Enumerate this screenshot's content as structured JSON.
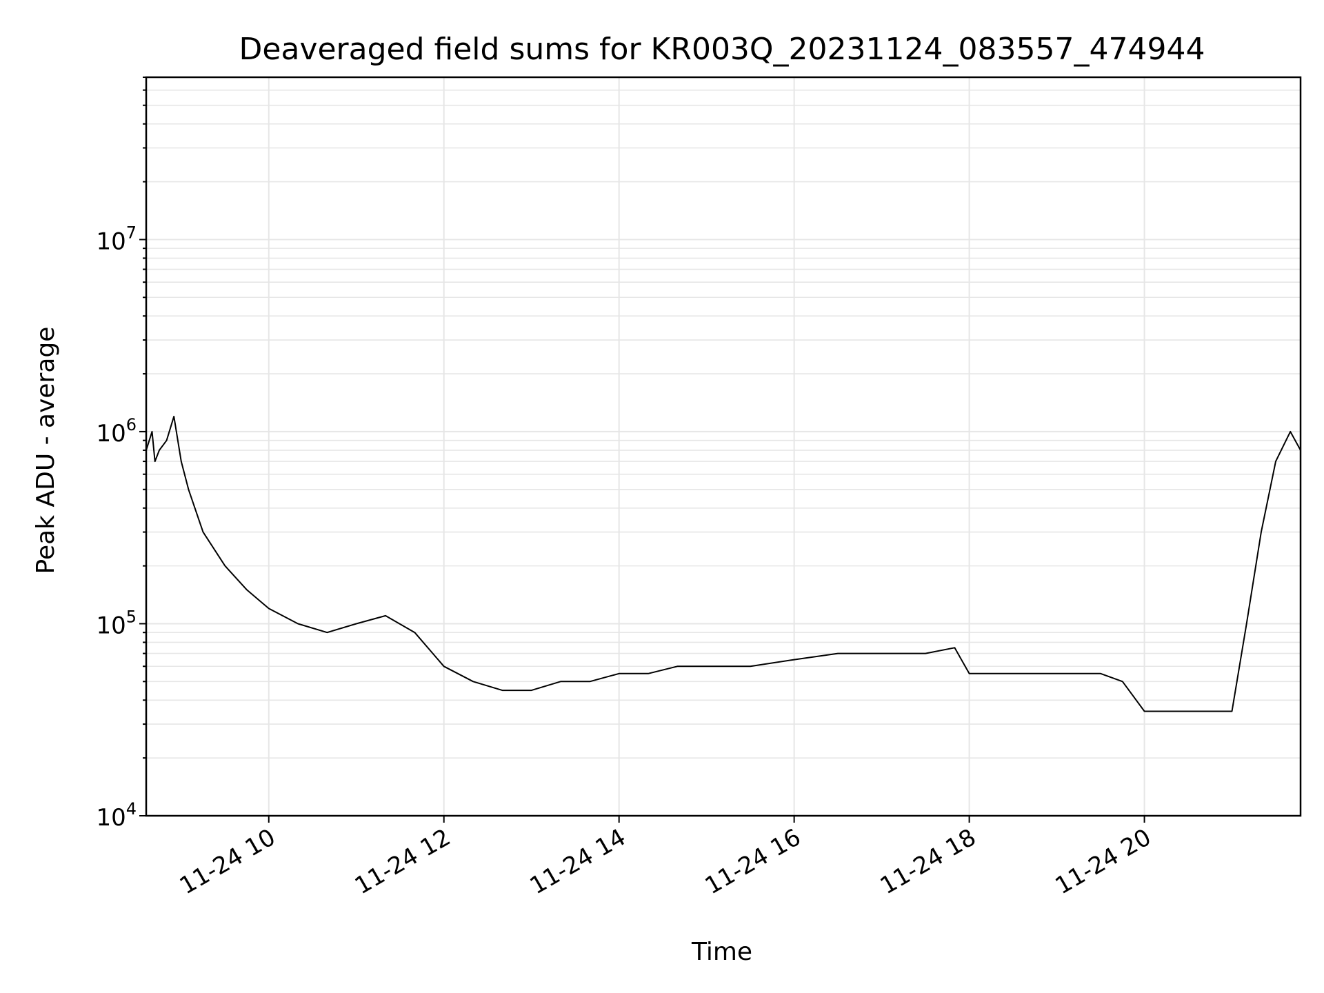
{
  "chart_data": {
    "type": "line",
    "title": "Deaveraged field sums for KR003Q_20231124_083557_474944",
    "xlabel": "Time",
    "ylabel": "Peak ADU - average",
    "yscale": "log",
    "ylim": [
      10000,
      70000000
    ],
    "xlim": [
      "2023-11-24 08:36",
      "2023-11-24 21:47"
    ],
    "grid": true,
    "line_color": "#000000",
    "grid_color": "#e6e6e6",
    "x_ticks": [
      {
        "t": "2023-11-24 10:00",
        "label": "11-24 10"
      },
      {
        "t": "2023-11-24 12:00",
        "label": "11-24 12"
      },
      {
        "t": "2023-11-24 14:00",
        "label": "11-24 14"
      },
      {
        "t": "2023-11-24 16:00",
        "label": "11-24 16"
      },
      {
        "t": "2023-11-24 18:00",
        "label": "11-24 18"
      },
      {
        "t": "2023-11-24 20:00",
        "label": "11-24 20"
      }
    ],
    "y_ticks": [
      {
        "value": 10000,
        "base": "10",
        "exp": "4"
      },
      {
        "value": 100000,
        "base": "10",
        "exp": "5"
      },
      {
        "value": 1000000,
        "base": "10",
        "exp": "6"
      },
      {
        "value": 10000000,
        "base": "10",
        "exp": "7"
      }
    ],
    "series": [
      {
        "x": [
          "2023-11-24 08:36",
          "2023-11-24 08:40",
          "2023-11-24 08:42",
          "2023-11-24 08:45",
          "2023-11-24 08:50",
          "2023-11-24 08:55",
          "2023-11-24 09:00",
          "2023-11-24 09:05",
          "2023-11-24 09:15",
          "2023-11-24 09:30",
          "2023-11-24 09:45",
          "2023-11-24 10:00",
          "2023-11-24 10:20",
          "2023-11-24 10:40",
          "2023-11-24 11:00",
          "2023-11-24 11:20",
          "2023-11-24 11:40",
          "2023-11-24 12:00",
          "2023-11-24 12:20",
          "2023-11-24 12:40",
          "2023-11-24 13:00",
          "2023-11-24 13:20",
          "2023-11-24 13:40",
          "2023-11-24 14:00",
          "2023-11-24 14:20",
          "2023-11-24 14:40",
          "2023-11-24 15:00",
          "2023-11-24 15:30",
          "2023-11-24 16:00",
          "2023-11-24 16:30",
          "2023-11-24 17:00",
          "2023-11-24 17:30",
          "2023-11-24 17:50",
          "2023-11-24 18:00",
          "2023-11-24 18:30",
          "2023-11-24 19:00",
          "2023-11-24 19:30",
          "2023-11-24 19:45",
          "2023-11-24 20:00",
          "2023-11-24 20:30",
          "2023-11-24 21:00",
          "2023-11-24 21:10",
          "2023-11-24 21:20",
          "2023-11-24 21:30",
          "2023-11-24 21:40",
          "2023-11-24 21:47"
        ],
        "y": [
          800000,
          1000000,
          700000,
          800000,
          900000,
          1200000,
          700000,
          500000,
          300000,
          200000,
          150000,
          120000,
          100000,
          90000,
          100000,
          110000,
          90000,
          60000,
          50000,
          45000,
          45000,
          50000,
          50000,
          55000,
          55000,
          60000,
          60000,
          60000,
          65000,
          70000,
          70000,
          70000,
          75000,
          55000,
          55000,
          55000,
          55000,
          50000,
          35000,
          35000,
          35000,
          100000,
          300000,
          700000,
          1000000,
          800000
        ]
      }
    ]
  }
}
